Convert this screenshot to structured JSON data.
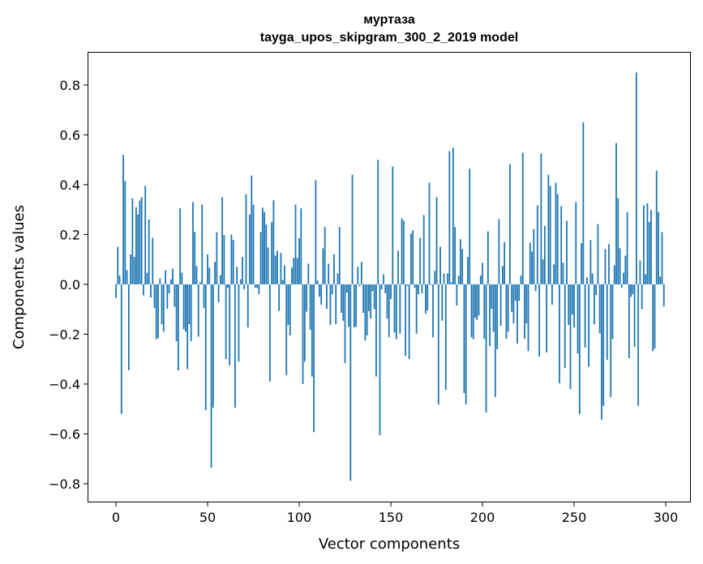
{
  "chart_data": {
    "type": "bar",
    "title_line1": "муртаза",
    "title_line2": "tayga_upos_skipgram_300_2_2019 model",
    "xlabel": "Vector components",
    "ylabel": "Components values",
    "xlim": [
      -15.5,
      313.7
    ],
    "ylim": [
      -0.875,
      0.933
    ],
    "xticks": [
      0,
      50,
      100,
      150,
      200,
      250,
      300
    ],
    "xtick_labels": [
      "0",
      "50",
      "100",
      "150",
      "200",
      "250",
      "300"
    ],
    "yticks": [
      -0.8,
      -0.6,
      -0.4,
      -0.2,
      0.0,
      0.2,
      0.4,
      0.6,
      0.8
    ],
    "ytick_labels": [
      "−0.8",
      "−0.6",
      "−0.4",
      "−0.2",
      "0.0",
      "0.2",
      "0.4",
      "0.6",
      "0.8"
    ],
    "grid": false,
    "bar_color": "#1f77b4",
    "values": [
      -0.055,
      0.15,
      0.035,
      -0.52,
      0.52,
      0.415,
      0.057,
      -0.345,
      0.12,
      0.345,
      0.11,
      0.31,
      0.28,
      0.337,
      0.35,
      -0.044,
      0.395,
      0.047,
      0.26,
      -0.053,
      0.187,
      -0.095,
      -0.22,
      -0.216,
      0.024,
      -0.16,
      -0.19,
      0.057,
      -0.098,
      -0.036,
      0.02,
      0.063,
      -0.09,
      -0.228,
      -0.345,
      0.305,
      0.047,
      -0.18,
      -0.19,
      -0.34,
      -0.16,
      -0.228,
      0.33,
      0.21,
      0.073,
      -0.21,
      0.008,
      0.32,
      -0.095,
      -0.505,
      0.12,
      0.067,
      -0.735,
      -0.495,
      0.09,
      0.21,
      -0.072,
      0.037,
      0.35,
      0.197,
      -0.3,
      -0.014,
      -0.325,
      0.2,
      0.178,
      -0.495,
      0.07,
      -0.31,
      0.02,
      0.11,
      -0.02,
      0.362,
      -0.173,
      0.28,
      0.437,
      0.32,
      -0.014,
      -0.014,
      -0.04,
      0.21,
      0.308,
      0.29,
      0.24,
      0.148,
      -0.39,
      0.25,
      0.337,
      0.115,
      0.135,
      -0.107,
      0.126,
      0.018,
      0.076,
      -0.364,
      -0.163,
      -0.205,
      0.067,
      0.106,
      0.32,
      0.106,
      0.185,
      0.305,
      -0.4,
      -0.31,
      -0.11,
      0.083,
      -0.182,
      -0.37,
      -0.593,
      0.418,
      0.015,
      -0.05,
      -0.082,
      0.145,
      0.23,
      -0.098,
      0.083,
      -0.163,
      -0.04,
      0.12,
      -0.16,
      0.044,
      0.23,
      -0.114,
      -0.146,
      -0.316,
      -0.033,
      -0.17,
      -0.788,
      0.44,
      -0.173,
      -0.17,
      0.07,
      -0.008,
      0.09,
      -0.114,
      -0.225,
      -0.205,
      -0.107,
      -0.137,
      -0.027,
      -0.1,
      -0.37,
      0.5,
      -0.605,
      -0.02,
      0.04,
      -0.036,
      -0.137,
      -0.212,
      -0.059,
      0.473,
      -0.193,
      -0.22,
      0.135,
      -0.198,
      0.265,
      0.255,
      -0.287,
      -0.005,
      -0.3,
      0.203,
      0.217,
      -0.014,
      -0.198,
      -0.04,
      0.187,
      -0.036,
      0.278,
      -0.118,
      -0.105,
      0.408,
      -0.003,
      -0.212,
      0.054,
      0.35,
      -0.482,
      0.151,
      -0.146,
      0.044,
      -0.423,
      0.044,
      0.535,
      0.008,
      0.548,
      0.23,
      -0.085,
      0.035,
      0.181,
      0.142,
      -0.436,
      -0.482,
      0.11,
      0.464,
      -0.212,
      -0.22,
      -0.134,
      -0.143,
      -0.125,
      0.035,
      0.087,
      -0.218,
      -0.514,
      0.213,
      -0.248,
      -0.098,
      -0.19,
      -0.452,
      -0.26,
      0.262,
      -0.166,
      0.073,
      0.17,
      -0.218,
      -0.19,
      0.483,
      -0.11,
      -0.157,
      -0.066,
      -0.238,
      -0.066,
      0.035,
      0.528,
      -0.218,
      -0.157,
      -0.268,
      0.167,
      0.131,
      0.222,
      -0.027,
      0.317,
      -0.29,
      0.525,
      0.1,
      0.235,
      -0.273,
      0.44,
      0.395,
      -0.082,
      0.08,
      0.408,
      0.362,
      -0.397,
      0.314,
      0.087,
      -0.336,
      0.255,
      -0.163,
      -0.42,
      -0.121,
      -0.173,
      0.33,
      -0.277,
      -0.521,
      0.165,
      0.65,
      -0.254,
      0.028,
      -0.33,
      0.178,
      0.044,
      -0.16,
      -0.043,
      0.242,
      -0.196,
      -0.543,
      -0.488,
      0.142,
      -0.303,
      0.161,
      -0.452,
      -0.22,
      0.076,
      0.567,
      0.346,
      0.145,
      -0.014,
      0.047,
      0.115,
      0.29,
      -0.296,
      -0.05,
      -0.04,
      -0.251,
      0.85,
      -0.488,
      0.096,
      -0.1,
      0.317,
      0.04,
      0.326,
      0.25,
      0.298,
      -0.268,
      -0.257,
      0.457,
      0.29,
      0.031,
      0.21,
      -0.089
    ]
  }
}
